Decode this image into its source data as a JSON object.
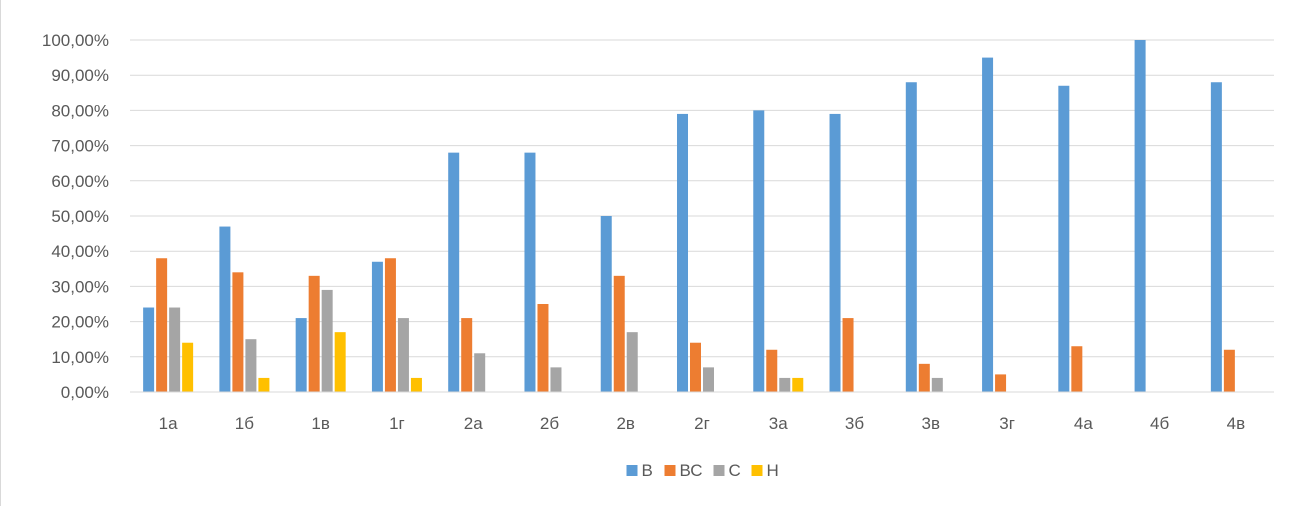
{
  "chart_data": {
    "type": "bar",
    "title": "",
    "xlabel": "",
    "ylabel": "",
    "categories": [
      "1а",
      "1б",
      "1в",
      "1г",
      "2а",
      "2б",
      "2в",
      "2г",
      "3а",
      "3б",
      "3в",
      "3г",
      "4а",
      "4б",
      "4в"
    ],
    "series": [
      {
        "name": "В",
        "color": "#5b9bd5",
        "values": [
          24,
          47,
          21,
          37,
          68,
          68,
          50,
          79,
          80,
          79,
          88,
          95,
          87,
          100,
          88
        ]
      },
      {
        "name": "ВС",
        "color": "#ed7d31",
        "values": [
          38,
          34,
          33,
          38,
          21,
          25,
          33,
          14,
          12,
          21,
          8,
          5,
          13,
          0,
          12
        ]
      },
      {
        "name": "С",
        "color": "#a5a5a5",
        "values": [
          24,
          15,
          29,
          21,
          11,
          7,
          17,
          7,
          4,
          0,
          4,
          0,
          0,
          0,
          0
        ]
      },
      {
        "name": "Н",
        "color": "#ffc000",
        "values": [
          14,
          4,
          17,
          4,
          0,
          0,
          0,
          0,
          4,
          0,
          0,
          0,
          0,
          0,
          0
        ]
      }
    ],
    "yticks": [
      "0,00%",
      "10,00%",
      "20,00%",
      "30,00%",
      "40,00%",
      "50,00%",
      "60,00%",
      "70,00%",
      "80,00%",
      "90,00%",
      "100,00%"
    ],
    "ylim": [
      0,
      100
    ],
    "grid": true,
    "legend_position": "bottom"
  }
}
